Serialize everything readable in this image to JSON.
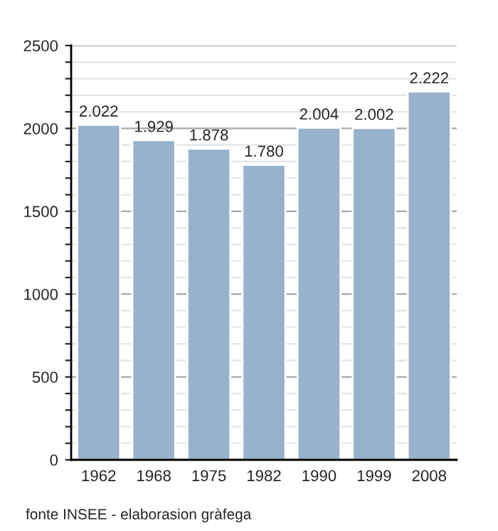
{
  "chart_data": {
    "type": "bar",
    "categories": [
      "1962",
      "1968",
      "1975",
      "1982",
      "1990",
      "1999",
      "2008"
    ],
    "values": [
      2022,
      1929,
      1878,
      1780,
      2004,
      2002,
      2222
    ],
    "value_labels": [
      "2.022",
      "1.929",
      "1.878",
      "1.780",
      "2.004",
      "2.002",
      "2.222"
    ],
    "color": "#98b1cc",
    "ylim": [
      0,
      2500
    ],
    "yticks": [
      0,
      {
        "value": 100,
        "label": null
      },
      {
        "value": 200,
        "label": null
      },
      {
        "value": 300,
        "label": null
      },
      {
        "value": 400,
        "label": null
      },
      500,
      {
        "value": 600,
        "label": null
      },
      {
        "value": 700,
        "label": null
      },
      {
        "value": 800,
        "label": null
      },
      {
        "value": 900,
        "label": null
      },
      1000,
      {
        "value": 1100,
        "label": null
      },
      {
        "value": 1200,
        "label": null
      },
      {
        "value": 1300,
        "label": null
      },
      {
        "value": 1400,
        "label": null
      },
      1500,
      {
        "value": 1600,
        "label": null
      },
      {
        "value": 1700,
        "label": null
      },
      {
        "value": 1800,
        "label": null
      },
      {
        "value": 1900,
        "label": null
      },
      2000,
      {
        "value": 2100,
        "label": null
      },
      {
        "value": 2200,
        "label": null
      },
      {
        "value": 2300,
        "label": null
      },
      {
        "value": 2400,
        "label": null
      },
      2500
    ],
    "grid": "y",
    "annotations": [
      "fonte INSEE - elaborasion gràfega"
    ]
  }
}
